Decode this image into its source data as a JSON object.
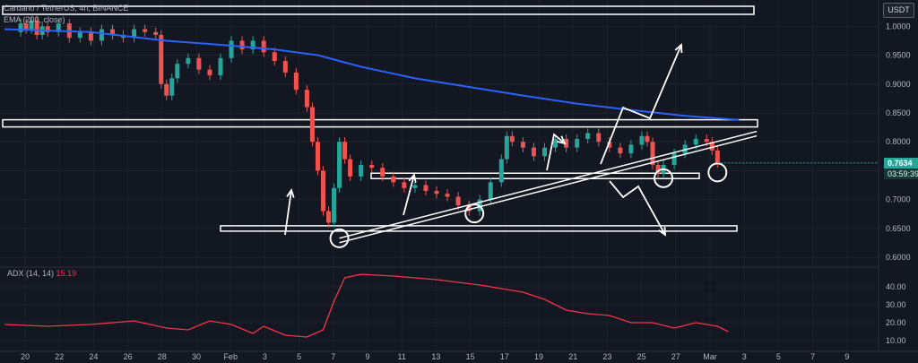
{
  "symbol_line": "Cardano / TetherUS, 4h, BINANCE",
  "ema_line": "EMA (200, close)",
  "adx_label": "ADX (14, 14)",
  "adx_value": "15.19",
  "currency": "USDT",
  "last_price": "0.7634",
  "countdown": "03:59:39",
  "colors": {
    "up": "#26a69a",
    "down": "#ef5350",
    "ema": "#2962ff",
    "adx": "#f23645",
    "background": "#131722",
    "annotation": "#ffffff"
  },
  "chart_data": [
    {
      "type": "candlestick",
      "title": "Cardano / TetherUS, 4h, BINANCE",
      "y_axis": {
        "ylim": [
          0.58,
          1.03
        ],
        "ticks": [
          "1.0000",
          "0.9500",
          "0.9000",
          "0.8500",
          "0.8000",
          "0.7500",
          "0.7000",
          "0.6500",
          "0.6000"
        ],
        "position": "right"
      },
      "x_axis": {
        "ticks": [
          "20",
          "22",
          "24",
          "26",
          "28",
          "30",
          "Feb",
          "3",
          "5",
          "7",
          "9",
          "11",
          "13",
          "15",
          "17",
          "19",
          "21",
          "23",
          "25",
          "27",
          "Mar",
          "3",
          "5",
          "7",
          "9"
        ]
      },
      "grid": true,
      "price_series": [
        [
          1,
          0.99
        ],
        [
          1.5,
          1.005
        ],
        [
          2,
          0.995
        ],
        [
          2.5,
          1.01
        ],
        [
          3,
          0.985
        ],
        [
          3.5,
          1.0
        ],
        [
          4,
          0.99
        ],
        [
          5,
          1.005
        ],
        [
          6,
          0.98
        ],
        [
          7,
          0.99
        ],
        [
          8,
          0.975
        ],
        [
          9,
          0.995
        ],
        [
          10,
          0.985
        ],
        [
          11,
          0.98
        ],
        [
          12,
          0.995
        ],
        [
          13,
          0.99
        ],
        [
          14,
          0.985
        ],
        [
          14.5,
          0.9
        ],
        [
          15,
          0.88
        ],
        [
          15.5,
          0.91
        ],
        [
          16,
          0.935
        ],
        [
          17,
          0.945
        ],
        [
          18,
          0.925
        ],
        [
          19,
          0.915
        ],
        [
          20,
          0.945
        ],
        [
          21,
          0.975
        ],
        [
          22,
          0.96
        ],
        [
          23,
          0.975
        ],
        [
          24,
          0.955
        ],
        [
          25,
          0.94
        ],
        [
          26,
          0.92
        ],
        [
          27,
          0.89
        ],
        [
          28,
          0.86
        ],
        [
          28.5,
          0.8
        ],
        [
          29,
          0.75
        ],
        [
          29.5,
          0.68
        ],
        [
          30,
          0.66
        ],
        [
          30.5,
          0.72
        ],
        [
          31,
          0.8
        ],
        [
          31.5,
          0.77
        ],
        [
          32,
          0.74
        ],
        [
          33,
          0.76
        ],
        [
          34,
          0.755
        ],
        [
          35,
          0.74
        ],
        [
          36,
          0.73
        ],
        [
          37,
          0.72
        ],
        [
          38,
          0.725
        ],
        [
          39,
          0.715
        ],
        [
          40,
          0.71
        ],
        [
          41,
          0.705
        ],
        [
          42,
          0.69
        ],
        [
          43,
          0.68
        ],
        [
          44,
          0.7
        ],
        [
          45,
          0.73
        ],
        [
          46,
          0.77
        ],
        [
          46.5,
          0.81
        ],
        [
          47,
          0.8
        ],
        [
          48,
          0.79
        ],
        [
          49,
          0.775
        ],
        [
          50,
          0.79
        ],
        [
          51,
          0.805
        ],
        [
          52,
          0.79
        ],
        [
          53,
          0.805
        ],
        [
          54,
          0.815
        ],
        [
          55,
          0.8
        ],
        [
          56,
          0.79
        ],
        [
          57,
          0.78
        ],
        [
          58,
          0.795
        ],
        [
          59,
          0.81
        ],
        [
          59.5,
          0.8
        ],
        [
          60,
          0.76
        ],
        [
          60.5,
          0.745
        ],
        [
          61,
          0.76
        ],
        [
          62,
          0.78
        ],
        [
          63,
          0.795
        ],
        [
          64,
          0.805
        ],
        [
          65,
          0.8
        ],
        [
          65.5,
          0.785
        ],
        [
          66,
          0.763
        ]
      ],
      "ema_200": [
        [
          0,
          0.995
        ],
        [
          8,
          0.99
        ],
        [
          15,
          0.975
        ],
        [
          20,
          0.968
        ],
        [
          25,
          0.96
        ],
        [
          29,
          0.95
        ],
        [
          33,
          0.93
        ],
        [
          38,
          0.91
        ],
        [
          43,
          0.895
        ],
        [
          48,
          0.88
        ],
        [
          53,
          0.866
        ],
        [
          58,
          0.855
        ],
        [
          63,
          0.845
        ],
        [
          68,
          0.838
        ]
      ],
      "horizontal_levels": [
        0.832,
        0.741,
        0.65,
        1.015
      ],
      "rising_trendline": {
        "from": [
          31,
          0.63
        ],
        "to": [
          84,
          0.815
        ]
      },
      "circled_touches": [
        [
          31,
          0.633
        ],
        [
          43.5,
          0.676
        ],
        [
          61,
          0.737
        ],
        [
          66,
          0.747
        ]
      ]
    },
    {
      "type": "line",
      "title": "ADX (14, 14)",
      "y_axis": {
        "ylim": [
          5,
          50
        ],
        "ticks": [
          "40.00",
          "30.00",
          "20.00",
          "10.00"
        ]
      },
      "series": [
        {
          "name": "ADX",
          "values": [
            [
              0,
              19
            ],
            [
              4,
              18
            ],
            [
              8,
              19
            ],
            [
              12,
              21
            ],
            [
              15,
              17
            ],
            [
              17,
              16
            ],
            [
              19,
              21
            ],
            [
              21,
              19
            ],
            [
              23,
              14
            ],
            [
              24,
              18
            ],
            [
              26,
              13
            ],
            [
              28,
              12
            ],
            [
              29.5,
              16
            ],
            [
              30.5,
              32
            ],
            [
              31.5,
              45
            ],
            [
              33,
              47
            ],
            [
              36,
              46
            ],
            [
              40,
              44
            ],
            [
              44,
              41
            ],
            [
              48,
              37
            ],
            [
              50,
              33
            ],
            [
              52,
              27
            ],
            [
              54,
              25
            ],
            [
              56,
              24
            ],
            [
              58,
              20
            ],
            [
              60,
              20
            ],
            [
              62,
              17
            ],
            [
              64,
              20
            ],
            [
              66,
              18
            ],
            [
              67,
              15
            ]
          ]
        }
      ]
    }
  ]
}
